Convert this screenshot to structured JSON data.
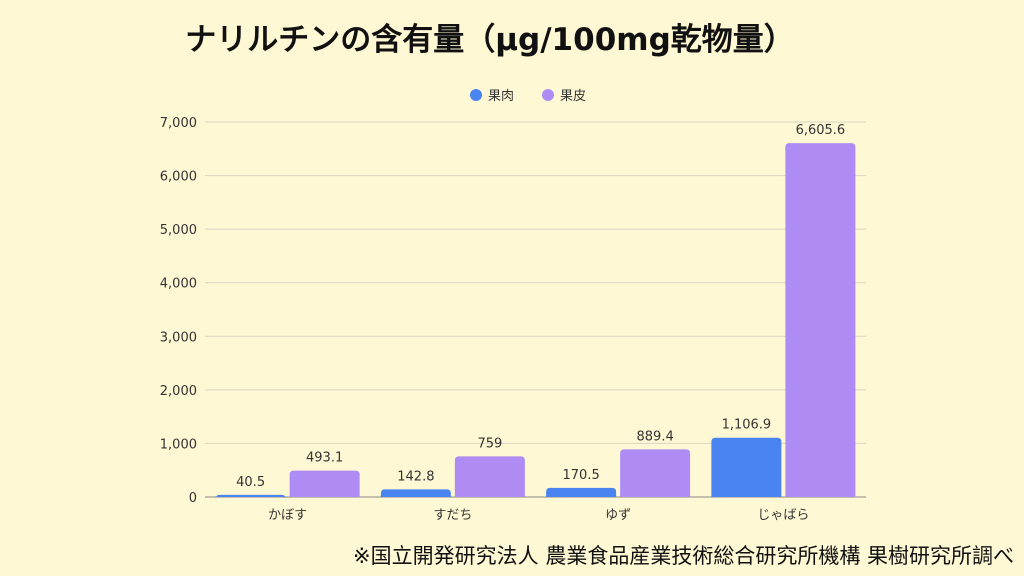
{
  "title": "ナリルチンの含有量（μg/100mg乾物量）",
  "footer": "※国立開発研究法人 農業食品産業技術総合研究所機構 果樹研究所調べ",
  "chart_data": {
    "type": "bar",
    "title": "ナリルチンの含有量（μg/100mg乾物量）",
    "categories": [
      "かぼす",
      "すだち",
      "ゆず",
      "じゃばら"
    ],
    "series": [
      {
        "name": "果肉",
        "color": "#4a84f0",
        "values": [
          40.5,
          142.8,
          170.5,
          1106.9
        ],
        "labels": [
          "40.5",
          "142.8",
          "170.5",
          "1,106.9"
        ]
      },
      {
        "name": "果皮",
        "color": "#ae8cf4",
        "values": [
          493.1,
          759,
          889.4,
          6605.6
        ],
        "labels": [
          "493.1",
          "759",
          "889.4",
          "6,605.6"
        ]
      }
    ],
    "yticks": [
      "0",
      "1,000",
      "2,000",
      "3,000",
      "4,000",
      "5,000",
      "6,000",
      "7,000"
    ],
    "ylim": [
      0,
      7000
    ],
    "grid": true,
    "legend": "top-center",
    "xlabel": "",
    "ylabel": ""
  }
}
